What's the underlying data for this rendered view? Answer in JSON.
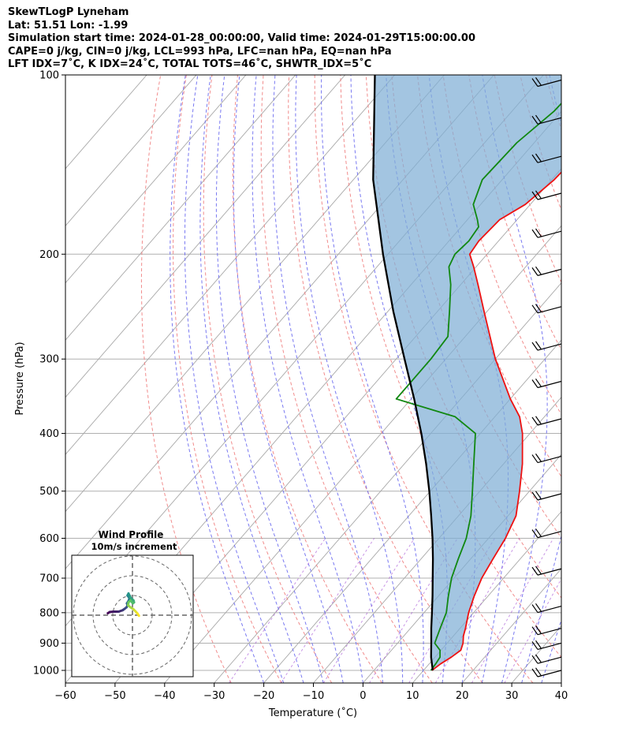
{
  "header": {
    "line1": "SkewTLogP Lyneham",
    "line2": "Lat: 51.51   Lon: -1.99",
    "line3": "Simulation start time: 2024-01-28_00:00:00, Valid time: 2024-01-29T15:00:00.00",
    "line4": "CAPE=0 j/kg, CIN=0 j/kg, LCL=993 hPa, LFC=nan hPa, EQ=nan hPa",
    "line5": "LFT IDX=7˚C, K IDX=24˚C, TOTAL TOTS=46˚C, SHWTR_IDX=5˚C"
  },
  "chart_data": {
    "type": "line",
    "subtype": "skew-t log-p",
    "xlabel": "Temperature (˚C)",
    "ylabel": "Pressure (hPa)",
    "xlim": [
      -60,
      40
    ],
    "ylim": [
      1050,
      100
    ],
    "y_scale": "log",
    "x_ticks": [
      -60,
      -50,
      -40,
      -30,
      -20,
      -10,
      0,
      10,
      20,
      30,
      40
    ],
    "x_tick_labels": [
      "−60",
      "−50",
      "−40",
      "−30",
      "−20",
      "−10",
      "0",
      "10",
      "20",
      "30",
      "40"
    ],
    "y_ticks": [
      100,
      200,
      300,
      400,
      500,
      600,
      700,
      800,
      900,
      1000
    ],
    "y_tick_labels": [
      "100",
      "200",
      "300",
      "400",
      "500",
      "600",
      "700",
      "800",
      "900",
      "1000"
    ],
    "grid": true,
    "colors": {
      "temperature": "#ee1111",
      "dewpoint": "#118811",
      "parcel": "#000000",
      "cin_shade": "#7fafd6",
      "dry_adiabat": "#f08080",
      "moist_adiabat": "#6a6af0",
      "mixing_ratio": "#9a3fd0",
      "isotherm": "#999999"
    },
    "series": [
      {
        "key": "temperature",
        "points": [
          [
            1000,
            11.7
          ],
          [
            975,
            12.3
          ],
          [
            950,
            13.3
          ],
          [
            925,
            14.0
          ],
          [
            900,
            13.2
          ],
          [
            875,
            12.0
          ],
          [
            850,
            11.1
          ],
          [
            800,
            9.0
          ],
          [
            750,
            7.2
          ],
          [
            700,
            5.6
          ],
          [
            650,
            4.5
          ],
          [
            600,
            3.4
          ],
          [
            550,
            1.6
          ],
          [
            500,
            -2.0
          ],
          [
            450,
            -6.2
          ],
          [
            400,
            -11.5
          ],
          [
            375,
            -15.0
          ],
          [
            350,
            -20.0
          ],
          [
            300,
            -30.0
          ],
          [
            250,
            -40.5
          ],
          [
            225,
            -46.5
          ],
          [
            210,
            -50.5
          ],
          [
            200,
            -53.5
          ],
          [
            190,
            -54.0
          ],
          [
            175,
            -53.5
          ],
          [
            165,
            -51.0
          ],
          [
            150,
            -49.5
          ],
          [
            135,
            -49.0
          ],
          [
            120,
            -47.5
          ],
          [
            110,
            -47.2
          ],
          [
            100,
            -47.3
          ]
        ]
      },
      {
        "key": "dewpoint",
        "points": [
          [
            1000,
            11.5
          ],
          [
            975,
            11.3
          ],
          [
            950,
            11.0
          ],
          [
            925,
            9.8
          ],
          [
            900,
            7.5
          ],
          [
            850,
            6.0
          ],
          [
            800,
            4.5
          ],
          [
            750,
            2.0
          ],
          [
            700,
            -0.5
          ],
          [
            650,
            -2.5
          ],
          [
            600,
            -4.5
          ],
          [
            550,
            -7.5
          ],
          [
            500,
            -11.5
          ],
          [
            450,
            -16.0
          ],
          [
            400,
            -21.0
          ],
          [
            375,
            -28.0
          ],
          [
            350,
            -43.0
          ],
          [
            300,
            -43.0
          ],
          [
            275,
            -43.5
          ],
          [
            250,
            -47.5
          ],
          [
            225,
            -52.0
          ],
          [
            210,
            -55.5
          ],
          [
            200,
            -56.5
          ],
          [
            190,
            -56.0
          ],
          [
            180,
            -56.5
          ],
          [
            175,
            -58.0
          ],
          [
            165,
            -61.5
          ],
          [
            150,
            -64.0
          ],
          [
            130,
            -63.5
          ],
          [
            115,
            -61.5
          ],
          [
            100,
            -61.0
          ]
        ]
      },
      {
        "key": "parcel",
        "points": [
          [
            1000,
            11.8
          ],
          [
            993,
            11.5
          ],
          [
            950,
            9.2
          ],
          [
            900,
            6.8
          ],
          [
            850,
            4.2
          ],
          [
            800,
            1.6
          ],
          [
            750,
            -1.2
          ],
          [
            700,
            -4.3
          ],
          [
            650,
            -7.6
          ],
          [
            600,
            -11.3
          ],
          [
            550,
            -15.5
          ],
          [
            500,
            -20.2
          ],
          [
            450,
            -25.6
          ],
          [
            400,
            -31.9
          ],
          [
            350,
            -39.4
          ],
          [
            300,
            -48.3
          ],
          [
            250,
            -58.8
          ],
          [
            200,
            -71.0
          ],
          [
            150,
            -86.0
          ],
          [
            100,
            -104.0
          ]
        ]
      }
    ],
    "wind_barbs": {
      "pressures": [
        102,
        118,
        137,
        158,
        183,
        212,
        245,
        283,
        327,
        378,
        437,
        505,
        584,
        675,
        780,
        850,
        900,
        950,
        1000
      ]
    },
    "hodograph": {
      "title": "Wind Profile",
      "subtitle": "10m/s increment",
      "points_uv": [
        [
          -12.5,
          1.0
        ],
        [
          -11.5,
          1.6
        ],
        [
          -9.5,
          1.8
        ],
        [
          -7.0,
          1.8
        ],
        [
          -5.0,
          2.5
        ],
        [
          -4.0,
          3.2
        ],
        [
          -3.0,
          4.0
        ],
        [
          -2.5,
          5.0
        ],
        [
          -2.8,
          6.0
        ],
        [
          -2.0,
          7.2
        ],
        [
          -1.5,
          8.6
        ],
        [
          -2.5,
          10.0
        ],
        [
          -2.0,
          11.0
        ],
        [
          -1.0,
          9.0
        ],
        [
          0.5,
          7.5
        ],
        [
          0.8,
          6.5
        ],
        [
          0.2,
          6.0
        ],
        [
          -1.0,
          7.5
        ],
        [
          -2.0,
          6.5
        ],
        [
          -2.2,
          5.0
        ],
        [
          -1.0,
          4.0
        ],
        [
          0.5,
          3.0
        ],
        [
          1.5,
          2.0
        ],
        [
          2.6,
          0.8
        ],
        [
          3.3,
          -0.3
        ]
      ]
    }
  }
}
